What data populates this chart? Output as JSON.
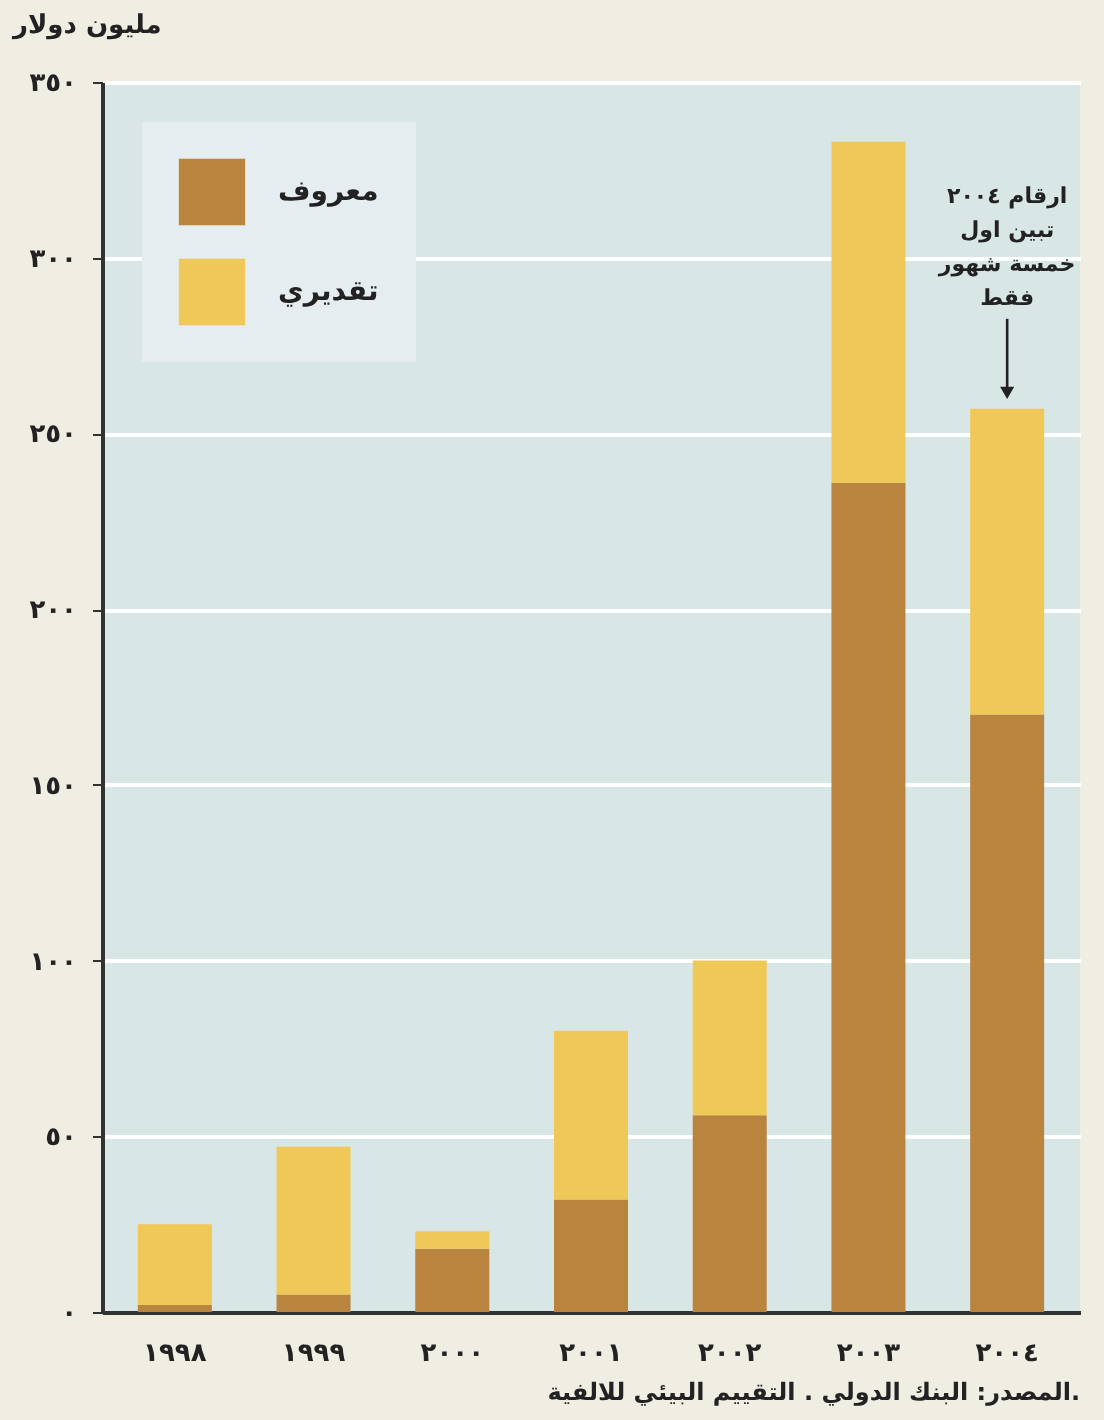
{
  "chart_data": {
    "type": "bar",
    "stacked": true,
    "ylabel": "مليون دولار",
    "categories": [
      "١٩٩٨",
      "١٩٩٩",
      "٢٠٠٠",
      "٢٠٠١",
      "٢٠٠٢",
      "٢٠٠٣",
      "٢٠٠٤"
    ],
    "series": [
      {
        "name": "معروف",
        "color": "#b8843e",
        "values": [
          2,
          5,
          18,
          32,
          56,
          236,
          170
        ]
      },
      {
        "name": "تقديري",
        "color": "#f0c858",
        "values": [
          23,
          42,
          5,
          48,
          44,
          97,
          87
        ]
      }
    ],
    "ylim": [
      0,
      350
    ],
    "yticks": [
      {
        "value": 0,
        "label": "٠"
      },
      {
        "value": 50,
        "label": "٥٠"
      },
      {
        "value": 100,
        "label": "١٠٠"
      },
      {
        "value": 150,
        "label": "١٥٠"
      },
      {
        "value": 200,
        "label": "٢٠٠"
      },
      {
        "value": 250,
        "label": "٢٥٠"
      },
      {
        "value": 300,
        "label": "٣٠٠"
      },
      {
        "value": 350,
        "label": "٣٥٠"
      }
    ],
    "grid": "y",
    "legend": "top left",
    "annotations": [
      {
        "text": "ارقام ٢٠٠٤\nتبين اول\nخمسة شهور\nفقط",
        "x": "٢٠٠٤",
        "y": 257
      },
      "المصدر: البنك الدولي . التقييم البيئي للالفية."
    ]
  }
}
